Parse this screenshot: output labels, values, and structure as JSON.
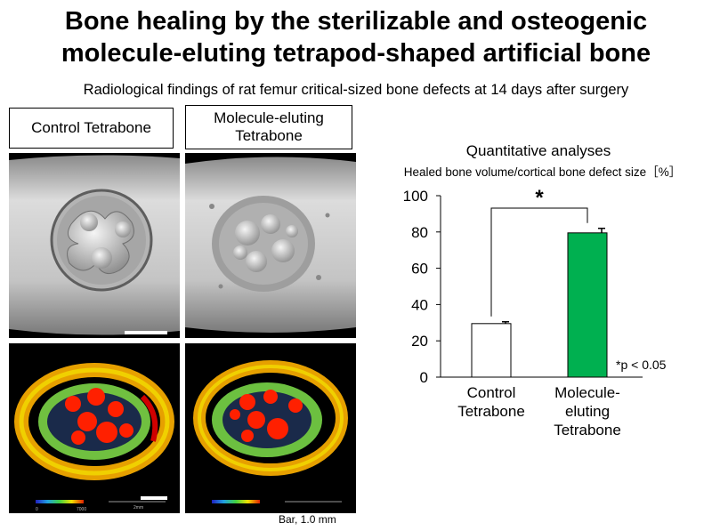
{
  "header": {
    "title_line1": "Bone healing by the sterilizable and osteogenic",
    "title_line2": "molecule-eluting tetrapod-shaped artificial bone",
    "subtitle": "Radiological findings of rat femur critical-sized bone defects at 14 days after surgery"
  },
  "panels": {
    "control_label": "Control Tetrabone",
    "molecule_label_line1": "Molecule-eluting",
    "molecule_label_line2": "Tetrabone",
    "scale_bar_note": "Bar, 1.0 mm",
    "colorbar_min": "0",
    "colorbar_max": "7000",
    "scale_text": "2mm"
  },
  "chart_data": {
    "type": "bar",
    "title": "Quantitative analyses",
    "ylabel": "Healed bone volume/cortical bone defect size［%］",
    "categories": [
      "Control Tetrabone",
      "Molecule-eluting Tetrabone"
    ],
    "category_lines": [
      [
        "Control",
        "Tetrabone"
      ],
      [
        "Molecule-",
        "eluting",
        "Tetrabone"
      ]
    ],
    "values": [
      29.5,
      79.5
    ],
    "errors": [
      1.0,
      2.5
    ],
    "bar_colors": [
      "#ffffff",
      "#00b050"
    ],
    "ylim": [
      0,
      100
    ],
    "yticks": [
      0,
      20,
      40,
      60,
      80,
      100
    ],
    "significance_marker": "*",
    "footnote": "*p < 0.05",
    "grid": false
  }
}
